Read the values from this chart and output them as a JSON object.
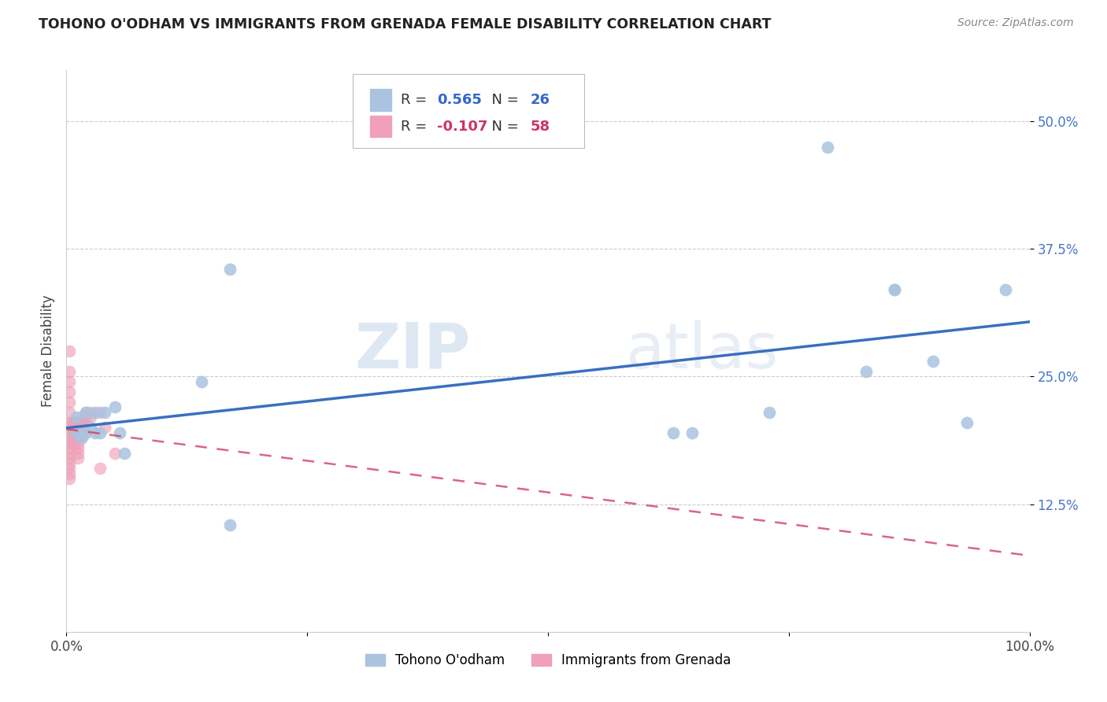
{
  "title": "TOHONO O'ODHAM VS IMMIGRANTS FROM GRENADA FEMALE DISABILITY CORRELATION CHART",
  "source": "Source: ZipAtlas.com",
  "ylabel": "Female Disability",
  "legend_label_1": "Tohono O'odham",
  "legend_label_2": "Immigrants from Grenada",
  "R1": 0.565,
  "N1": 26,
  "R2": -0.107,
  "N2": 58,
  "blue_color": "#aac4e0",
  "pink_color": "#f0a0b8",
  "blue_line_color": "#3a6fc0",
  "pink_line_color": "#d04060",
  "watermark_zip": "ZIP",
  "watermark_atlas": "atlas",
  "xlim": [
    0.0,
    1.0
  ],
  "ylim": [
    0.0,
    0.55
  ],
  "xtick_positions": [
    0.0,
    0.25,
    0.5,
    0.75,
    1.0
  ],
  "xtick_labels": [
    "0.0%",
    "",
    "",
    "",
    "100.0%"
  ],
  "ytick_positions": [
    0.125,
    0.25,
    0.375,
    0.5
  ],
  "ytick_labels": [
    "12.5%",
    "25.0%",
    "37.5%",
    "50.0%"
  ],
  "blue_x": [
    0.01,
    0.01,
    0.015,
    0.02,
    0.02,
    0.025,
    0.03,
    0.03,
    0.035,
    0.04,
    0.05,
    0.055,
    0.06,
    0.14,
    0.17,
    0.17,
    0.63,
    0.65,
    0.73,
    0.79,
    0.83,
    0.86,
    0.86,
    0.9,
    0.935,
    0.975
  ],
  "blue_y": [
    0.195,
    0.21,
    0.19,
    0.195,
    0.215,
    0.2,
    0.195,
    0.215,
    0.195,
    0.215,
    0.22,
    0.195,
    0.175,
    0.245,
    0.355,
    0.105,
    0.195,
    0.195,
    0.215,
    0.475,
    0.255,
    0.335,
    0.335,
    0.265,
    0.205,
    0.335
  ],
  "pink_x": [
    0.003,
    0.003,
    0.003,
    0.003,
    0.003,
    0.003,
    0.003,
    0.003,
    0.003,
    0.003,
    0.003,
    0.003,
    0.003,
    0.003,
    0.003,
    0.003,
    0.003,
    0.003,
    0.006,
    0.006,
    0.006,
    0.006,
    0.006,
    0.008,
    0.008,
    0.008,
    0.008,
    0.009,
    0.009,
    0.009,
    0.012,
    0.012,
    0.012,
    0.012,
    0.012,
    0.012,
    0.012,
    0.012,
    0.013,
    0.013,
    0.013,
    0.015,
    0.015,
    0.016,
    0.016,
    0.016,
    0.016,
    0.016,
    0.018,
    0.018,
    0.02,
    0.02,
    0.025,
    0.025,
    0.035,
    0.035,
    0.04,
    0.05
  ],
  "pink_y": [
    0.275,
    0.255,
    0.245,
    0.235,
    0.225,
    0.215,
    0.205,
    0.2,
    0.195,
    0.19,
    0.185,
    0.18,
    0.175,
    0.17,
    0.165,
    0.16,
    0.155,
    0.15,
    0.205,
    0.2,
    0.195,
    0.19,
    0.185,
    0.205,
    0.2,
    0.195,
    0.185,
    0.205,
    0.2,
    0.19,
    0.205,
    0.2,
    0.195,
    0.19,
    0.185,
    0.18,
    0.175,
    0.17,
    0.205,
    0.2,
    0.195,
    0.205,
    0.195,
    0.21,
    0.205,
    0.2,
    0.195,
    0.19,
    0.205,
    0.195,
    0.215,
    0.205,
    0.215,
    0.21,
    0.215,
    0.16,
    0.2,
    0.175
  ]
}
